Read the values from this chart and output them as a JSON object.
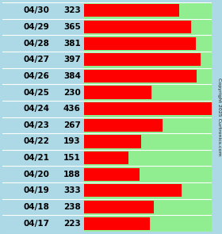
{
  "dates": [
    "04/30",
    "04/29",
    "04/28",
    "04/27",
    "04/26",
    "04/25",
    "04/24",
    "04/23",
    "04/22",
    "04/21",
    "04/20",
    "04/19",
    "04/18",
    "04/17"
  ],
  "values": [
    323,
    365,
    381,
    397,
    384,
    230,
    436,
    267,
    193,
    151,
    188,
    333,
    238,
    223
  ],
  "bar_color": "#ff0000",
  "label_bg_color": "#add8e6",
  "bar_bg_color": "#90ee90",
  "text_color": "#000000",
  "max_value": 436,
  "copyright_text": "Copyright 2025 Curtronics.com",
  "date_fontsize": 7.5,
  "value_fontsize": 7.5
}
